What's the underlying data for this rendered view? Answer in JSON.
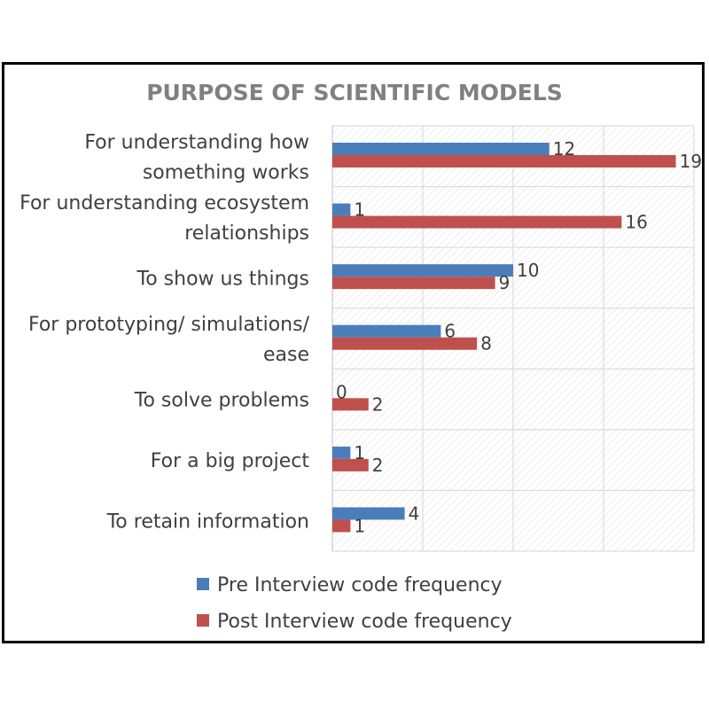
{
  "chart_data": {
    "type": "bar",
    "orientation": "horizontal",
    "title": "PURPOSE OF SCIENTIFIC MODELS",
    "categories": [
      [
        "For understanding how",
        "something works"
      ],
      [
        "For understanding ecosystem",
        "relationships"
      ],
      [
        "To show us things"
      ],
      [
        "For prototyping/ simulations/",
        "ease"
      ],
      [
        "To solve problems"
      ],
      [
        "For a big project"
      ],
      [
        "To retain information"
      ]
    ],
    "series": [
      {
        "name": "Pre Interview code frequency",
        "color": "#4a7ebb",
        "values": [
          12,
          1,
          10,
          6,
          0,
          1,
          4
        ]
      },
      {
        "name": "Post Interview code frequency",
        "color": "#c0504d",
        "values": [
          19,
          16,
          9,
          8,
          2,
          2,
          1
        ]
      }
    ],
    "xlim": [
      0,
      20
    ],
    "grid": true,
    "legend": "bottom"
  }
}
